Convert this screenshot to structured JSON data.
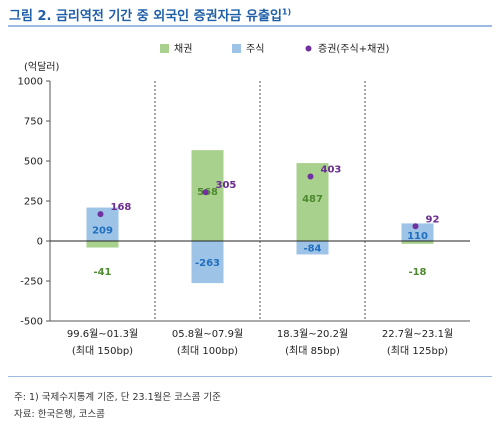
{
  "title": "그림 2. 금리역전 기간 중 외국인 증권자금 유출입",
  "title_sup": "1)",
  "notes": {
    "note1": "주: 1) 국제수지통계 기준, 단 23.1월은 코스콤 기준",
    "note2": "자료: 한국은행, 코스콤"
  },
  "chart_data": {
    "type": "bar",
    "ylabel": "(억달러)",
    "ylim": [
      -500,
      1000
    ],
    "yticks": [
      1000,
      750,
      500,
      250,
      0,
      -250,
      -500
    ],
    "categories": [
      "99.6월~01.3월",
      "05.8월~07.9월",
      "18.3월~20.2월",
      "22.7월~23.1월"
    ],
    "category_sublabels": [
      "(최대 150bp)",
      "(최대 100bp)",
      "(최대 85bp)",
      "(최대 125bp)"
    ],
    "series": [
      {
        "name": "채권",
        "color": "#a9d18e",
        "label_color": "#4e8a2e",
        "values": [
          -41,
          568,
          487,
          -18
        ]
      },
      {
        "name": "주식",
        "color": "#9dc3e6",
        "label_color": "#1f6fbf",
        "values": [
          209,
          -263,
          -84,
          110
        ]
      },
      {
        "name": "증권(주식+채권)",
        "color": "#7030a0",
        "label_color": "#6a2c91",
        "values": [
          168,
          305,
          403,
          92
        ]
      }
    ],
    "legend_position": "top"
  }
}
